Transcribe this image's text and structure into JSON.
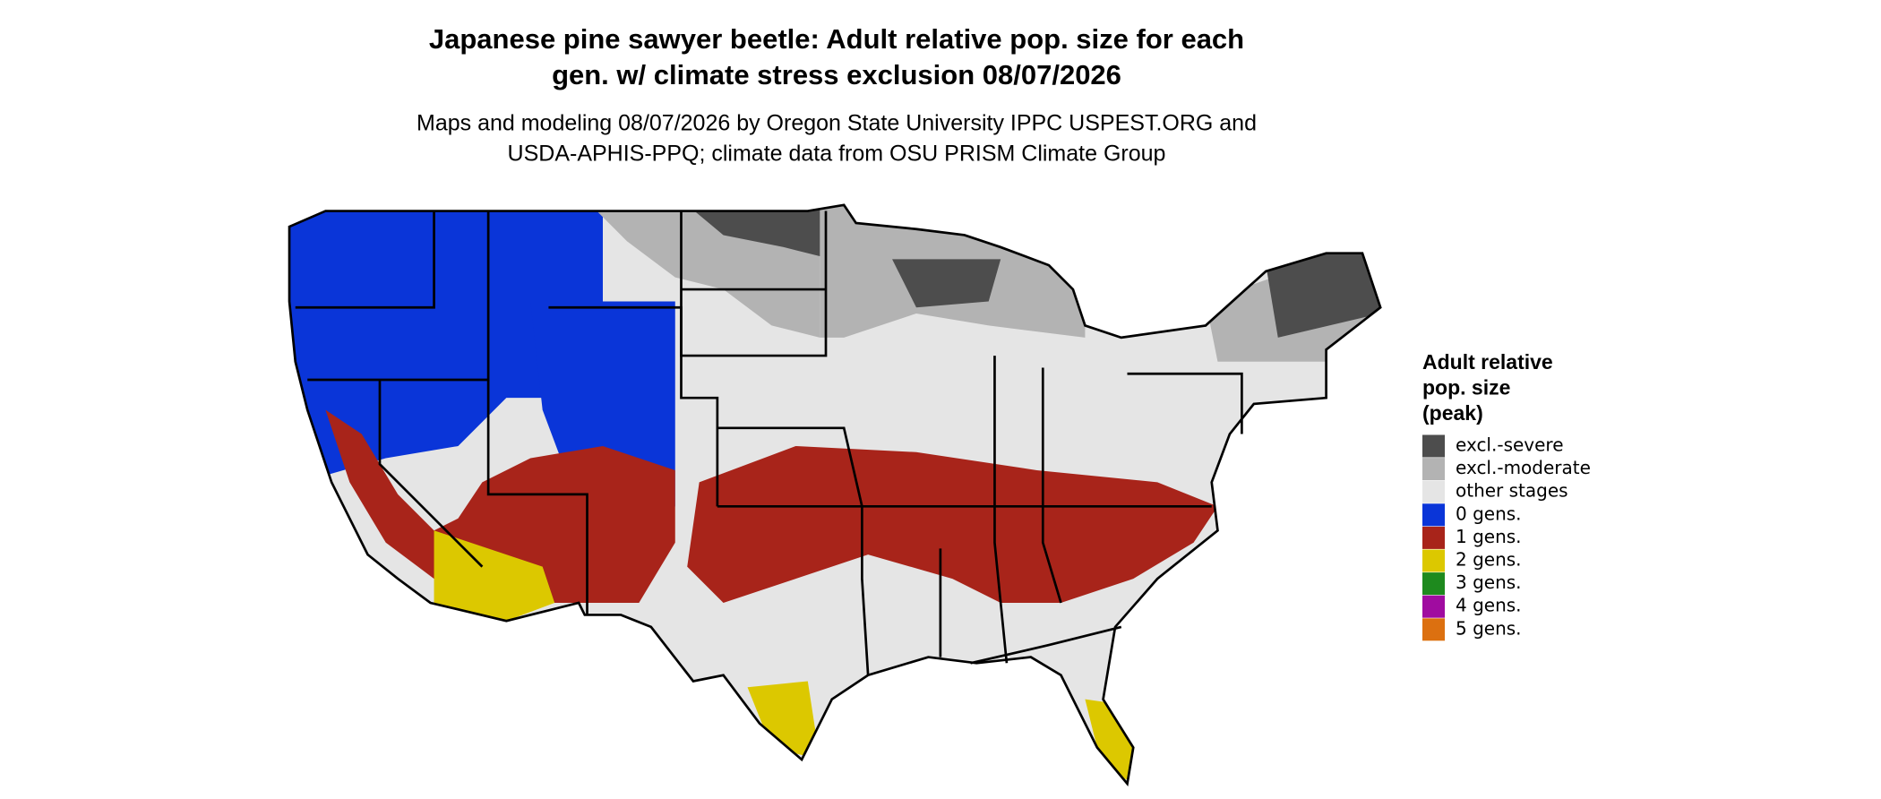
{
  "title": [
    "Japanese pine sawyer beetle: Adult relative pop. size for each",
    "gen. w/ climate stress exclusion 08/07/2026"
  ],
  "subtitle": [
    "Maps and modeling 08/07/2026 by Oregon State University IPPC USPEST.ORG and",
    "USDA-APHIS-PPQ; climate data from OSU PRISM Climate Group"
  ],
  "legend": {
    "title": [
      "Adult relative",
      "pop. size",
      "(peak)"
    ],
    "items": [
      {
        "label": "excl.-severe",
        "color": "#4d4d4d"
      },
      {
        "label": "excl.-moderate",
        "color": "#b3b3b3"
      },
      {
        "label": "other stages",
        "color": "#e5e5e5"
      },
      {
        "label": "0 gens.",
        "color": "#0a35d8"
      },
      {
        "label": "1 gens.",
        "color": "#a8241a"
      },
      {
        "label": "2 gens.",
        "color": "#dcc800"
      },
      {
        "label": "3 gens.",
        "color": "#1e8a1e"
      },
      {
        "label": "4 gens.",
        "color": "#a00ca0"
      },
      {
        "label": "5 gens.",
        "color": "#dc7010"
      }
    ]
  }
}
